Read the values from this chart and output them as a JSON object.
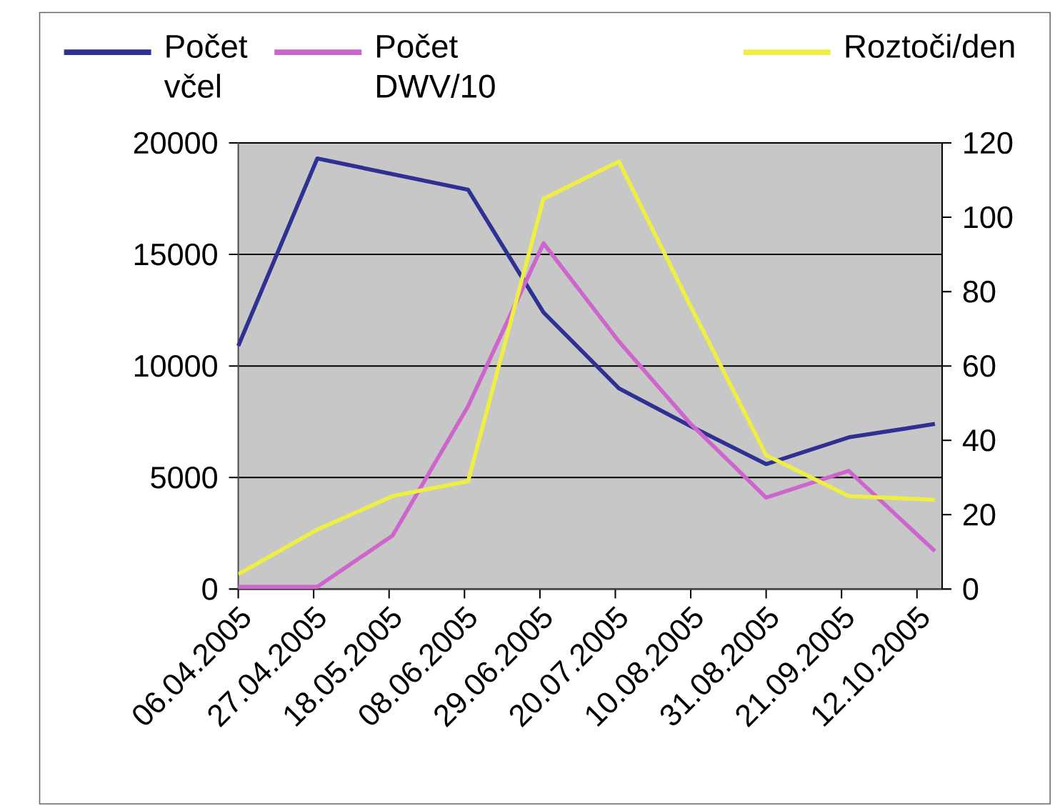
{
  "chart_data": {
    "type": "line",
    "x": [
      "2005-04-06",
      "2005-04-28",
      "2005-05-19",
      "2005-06-09",
      "2005-06-30",
      "2005-07-21",
      "2005-08-10",
      "2005-08-31",
      "2005-09-23",
      "2005-10-17"
    ],
    "series": [
      {
        "name": "Počet včel",
        "color": "#2e3192",
        "values": [
          10900,
          19300,
          18600,
          17900,
          12400,
          9000,
          7300,
          5600,
          6800,
          7400
        ]
      },
      {
        "name": "Počet DWV/10",
        "color": "#cc66cc",
        "values": [
          100,
          100,
          2400,
          8200,
          15500,
          11100,
          7400,
          4100,
          5300,
          1700
        ]
      },
      {
        "name": "Roztoči/den",
        "color": "#eeee44",
        "axis": "y2",
        "values": [
          4,
          16,
          25,
          29,
          105,
          115,
          76,
          36,
          25,
          24
        ]
      }
    ],
    "xlim": [
      "2005-04-06",
      "2005-10-19"
    ],
    "xticks": [
      {
        "value": "2005-04-06",
        "label": "06.04.2005"
      },
      {
        "value": "2005-04-27",
        "label": "27.04.2005"
      },
      {
        "value": "2005-05-18",
        "label": "18.05.2005"
      },
      {
        "value": "2005-06-08",
        "label": "08.06.2005"
      },
      {
        "value": "2005-06-29",
        "label": "29.06.2005"
      },
      {
        "value": "2005-07-20",
        "label": "20.07.2005"
      },
      {
        "value": "2005-08-10",
        "label": "10.08.2005"
      },
      {
        "value": "2005-08-31",
        "label": "31.08.2005"
      },
      {
        "value": "2005-09-21",
        "label": "21.09.2005"
      },
      {
        "value": "2005-10-12",
        "label": "12.10.2005"
      }
    ],
    "ylim": [
      0,
      20000
    ],
    "yticks": [
      0,
      5000,
      10000,
      15000,
      20000
    ],
    "y2lim": [
      0,
      120
    ],
    "y2ticks": [
      0,
      20,
      40,
      60,
      80,
      100,
      120
    ],
    "grid": "y",
    "legend": "top",
    "marker": "none",
    "line_style": "solid"
  }
}
